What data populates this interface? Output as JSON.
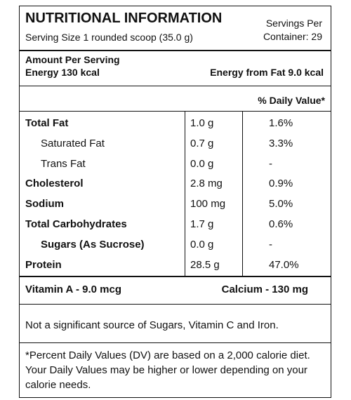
{
  "header": {
    "title": "NUTRITIONAL INFORMATION",
    "serving_size": "Serving Size 1 rounded scoop (35.0 g)",
    "servings": [
      "Servings Per",
      "Container: 29"
    ]
  },
  "amount": {
    "label": "Amount Per Serving",
    "energy": "Energy 130 kcal",
    "energy_from_fat": "Energy from Fat 9.0 kcal"
  },
  "table": {
    "dv_header": "% Daily Value*",
    "rows": [
      [
        "Total Fat",
        "1.0 g",
        "1.6%"
      ],
      [
        "Saturated Fat",
        "0.7 g",
        "3.3%"
      ],
      [
        "Trans Fat",
        "0.0 g",
        "-"
      ],
      [
        "Cholesterol",
        "2.8 mg",
        "0.9%"
      ],
      [
        "Sodium",
        "100 mg",
        "5.0%"
      ],
      [
        "Total Carbohydrates",
        "1.7 g",
        "0.6%"
      ],
      [
        "Sugars (As Sucrose)",
        "0.0 g",
        "-"
      ],
      [
        "Protein",
        "28.5 g",
        "47.0%"
      ]
    ]
  },
  "vitamins": [
    "Vitamin A - 9.0 mcg",
    "Calcium - 130 mg"
  ],
  "note": "Not a significant source of Sugars, Vitamin C and Iron.",
  "footnote": "*Percent Daily Values (DV) are based on a 2,000 calorie diet. Your Daily Values may be higher or lower depending on your calorie needs."
}
